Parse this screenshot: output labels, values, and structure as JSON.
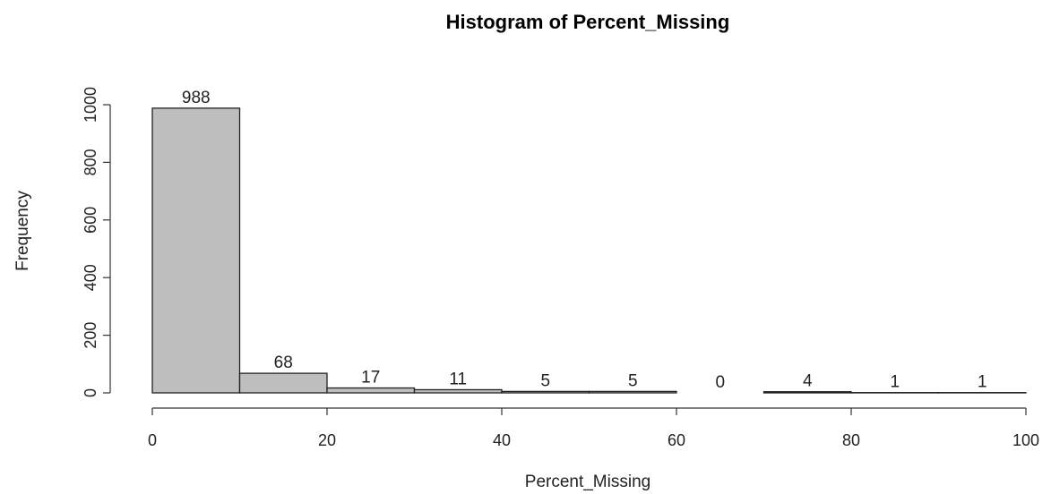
{
  "chart_data": {
    "type": "bar",
    "title": "Histogram of Percent_Missing",
    "xlabel": "Percent_Missing",
    "ylabel": "Frequency",
    "bins": [
      {
        "x0": 0,
        "x1": 10,
        "count": 988
      },
      {
        "x0": 10,
        "x1": 20,
        "count": 68
      },
      {
        "x0": 20,
        "x1": 30,
        "count": 17
      },
      {
        "x0": 30,
        "x1": 40,
        "count": 11
      },
      {
        "x0": 40,
        "x1": 50,
        "count": 5
      },
      {
        "x0": 50,
        "x1": 60,
        "count": 5
      },
      {
        "x0": 60,
        "x1": 70,
        "count": 0
      },
      {
        "x0": 70,
        "x1": 80,
        "count": 4
      },
      {
        "x0": 80,
        "x1": 90,
        "count": 1
      },
      {
        "x0": 90,
        "x1": 100,
        "count": 1
      }
    ],
    "data_labels": [
      "988",
      "68",
      "17",
      "11",
      "5",
      "5",
      "0",
      "4",
      "1",
      "1"
    ],
    "xlim": [
      0,
      100
    ],
    "ylim": [
      0,
      1000
    ],
    "x_ticks": [
      0,
      20,
      40,
      60,
      80,
      100
    ],
    "x_tick_labels": [
      "0",
      "20",
      "40",
      "60",
      "80",
      "100"
    ],
    "y_ticks": [
      0,
      200,
      400,
      600,
      800,
      1000
    ],
    "y_tick_labels": [
      "0",
      "200",
      "400",
      "600",
      "800",
      "1000"
    ],
    "grid": false,
    "legend": "none"
  }
}
